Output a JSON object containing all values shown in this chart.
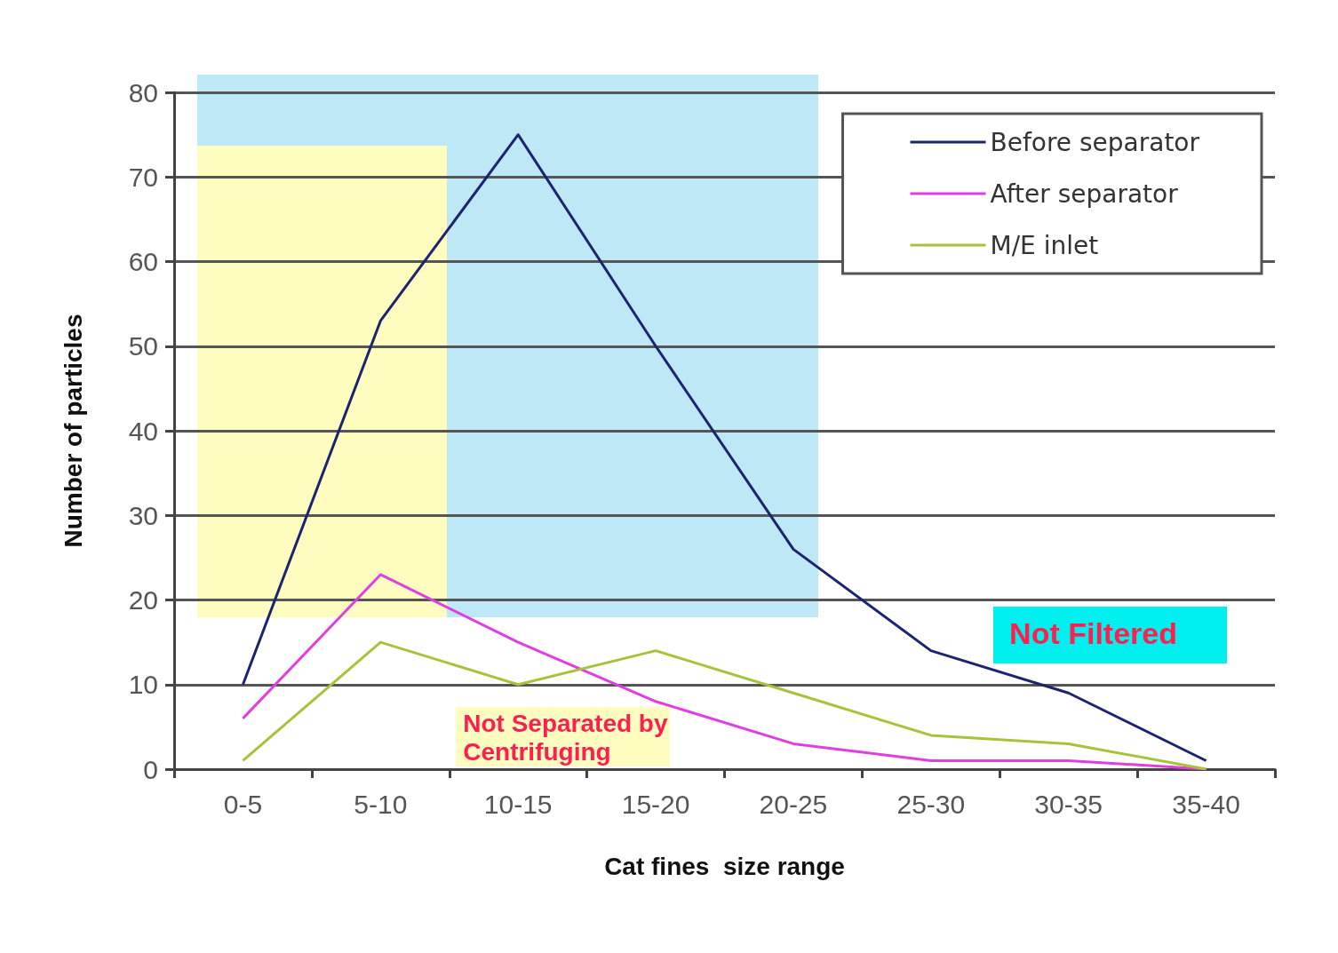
{
  "chart_data": {
    "type": "line",
    "xlabel": "Cat fines  size range",
    "ylabel": "Number of particles",
    "categories": [
      "0-5",
      "5-10",
      "10-15",
      "15-20",
      "20-25",
      "25-30",
      "30-35",
      "35-40"
    ],
    "series": [
      {
        "name": "Before separator",
        "color": "#1c2470",
        "values": [
          10,
          53,
          75,
          50,
          26,
          14,
          9,
          1
        ]
      },
      {
        "name": "After separator",
        "color": "#e03ee0",
        "values": [
          6,
          23,
          15,
          8,
          3,
          1,
          1,
          0
        ]
      },
      {
        "name": "M/E inlet",
        "color": "#a6c43a",
        "values": [
          1,
          15,
          10,
          14,
          9,
          4,
          3,
          0
        ]
      }
    ],
    "ylim": [
      0,
      80
    ],
    "yticks": [
      0,
      10,
      20,
      30,
      40,
      50,
      60,
      70,
      80
    ],
    "grid": "y",
    "legend": "top right",
    "marker": "none",
    "line_style": "solid",
    "annotations": [
      "Not Separated by Centrifuging",
      "Not Filtered"
    ]
  }
}
